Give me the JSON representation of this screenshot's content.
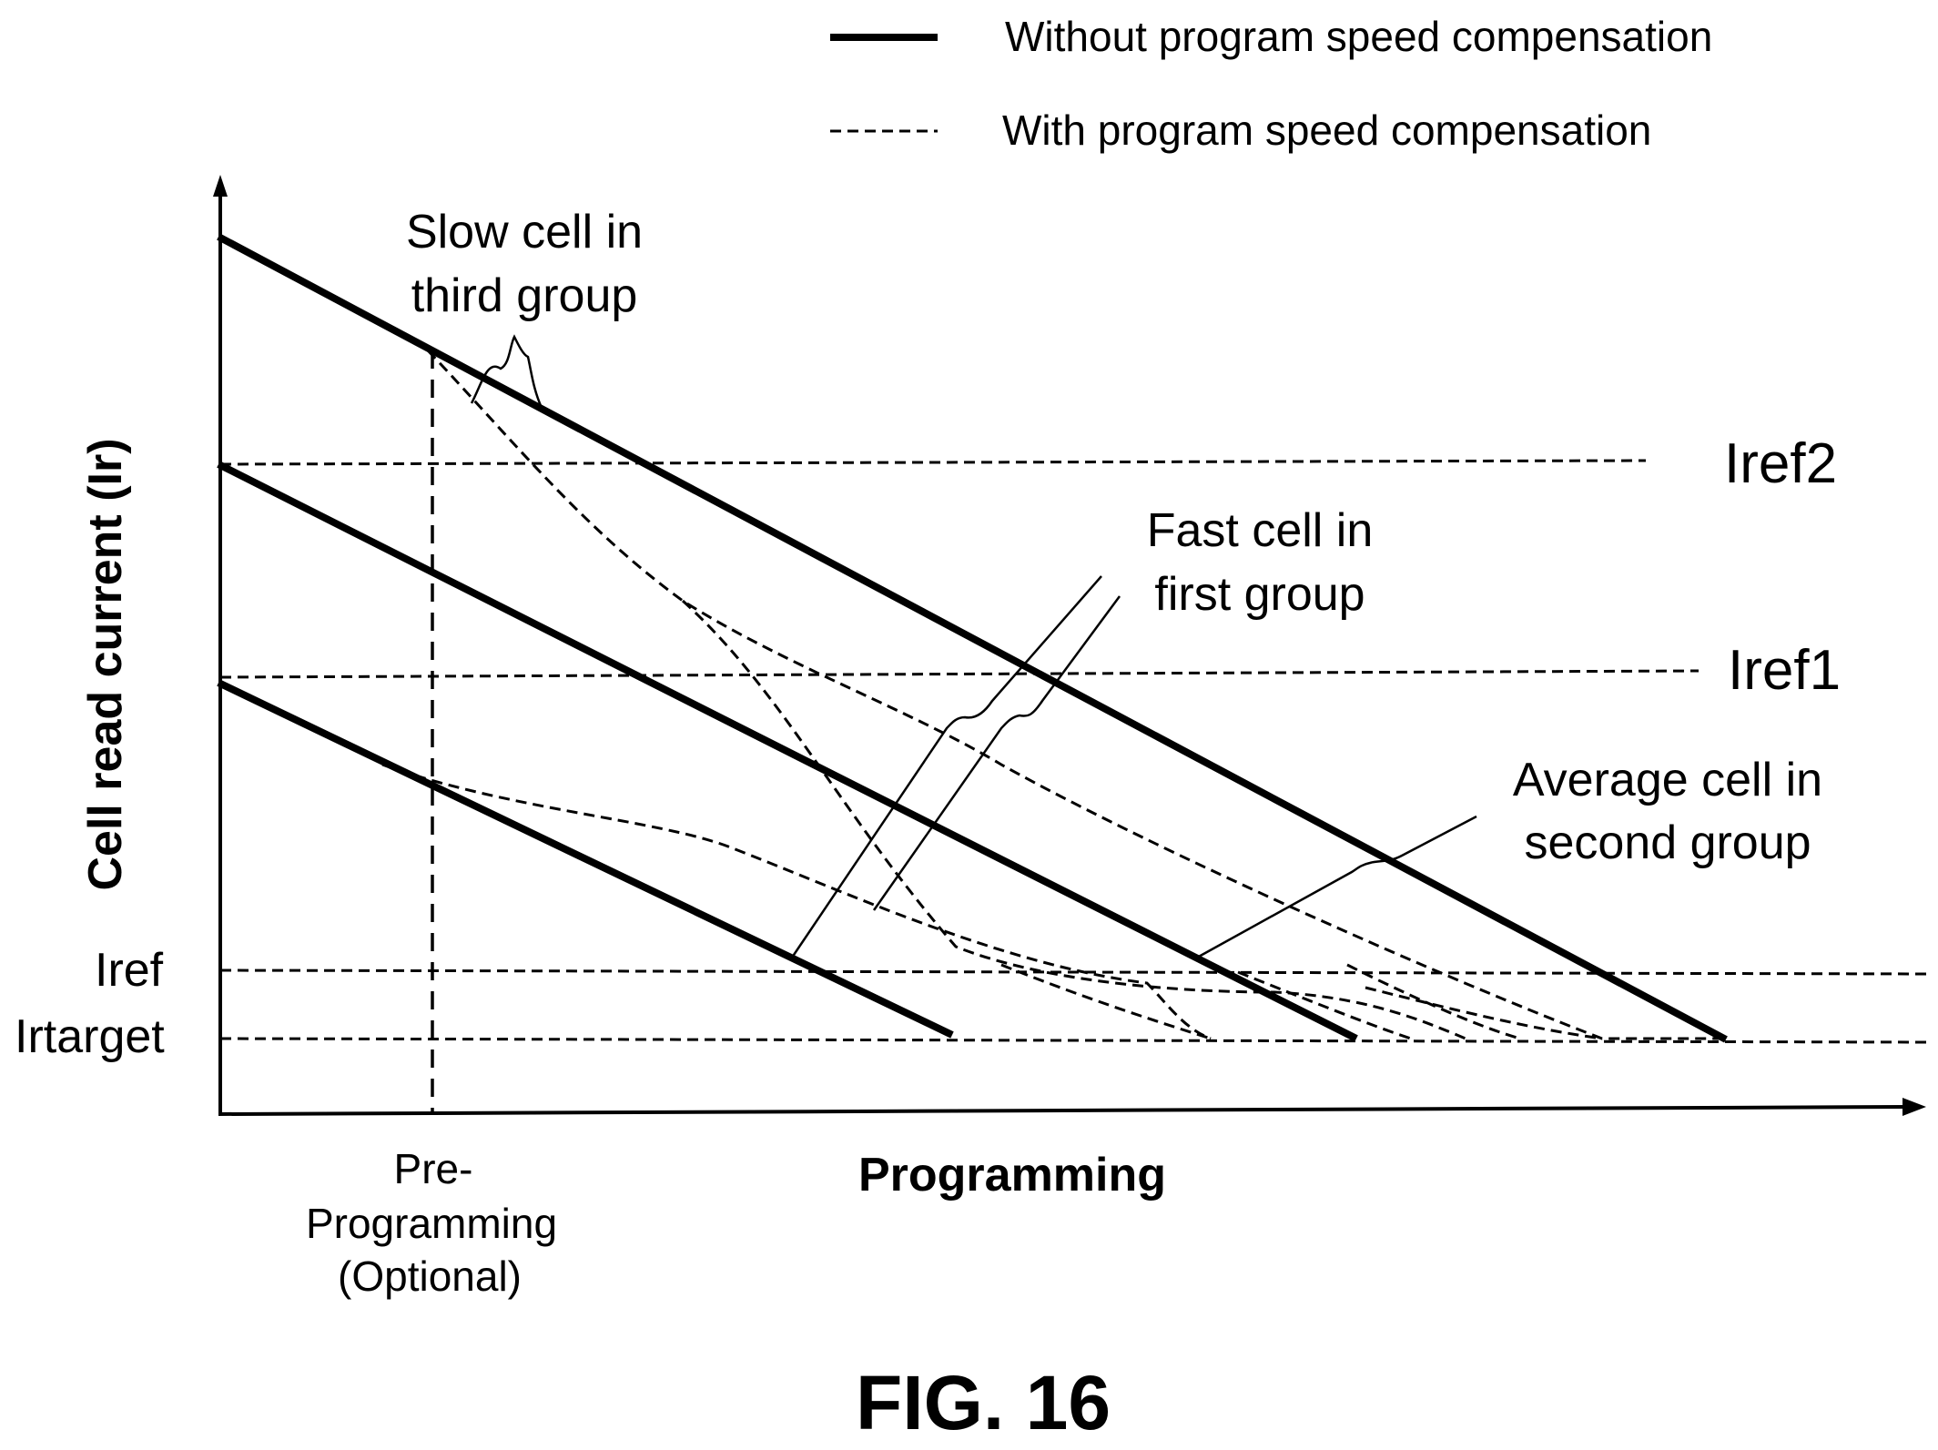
{
  "legend": {
    "solid_label": "Without program speed compensation",
    "dashed_label": "With program speed compensation"
  },
  "axes": {
    "y_title": "Cell read current (Ir)",
    "x_title": "Programming",
    "x_marker": [
      "Pre-",
      "Programming",
      "(Optional)"
    ]
  },
  "levels": {
    "iref2": "Iref2",
    "iref1": "Iref1",
    "iref": "Iref",
    "irtarget": "Irtarget"
  },
  "annotations": {
    "slow": [
      "Slow cell in",
      "third group"
    ],
    "fast": [
      "Fast cell in",
      "first group"
    ],
    "average": [
      "Average cell in",
      "second group"
    ]
  },
  "figure_title": "FIG. 16"
}
